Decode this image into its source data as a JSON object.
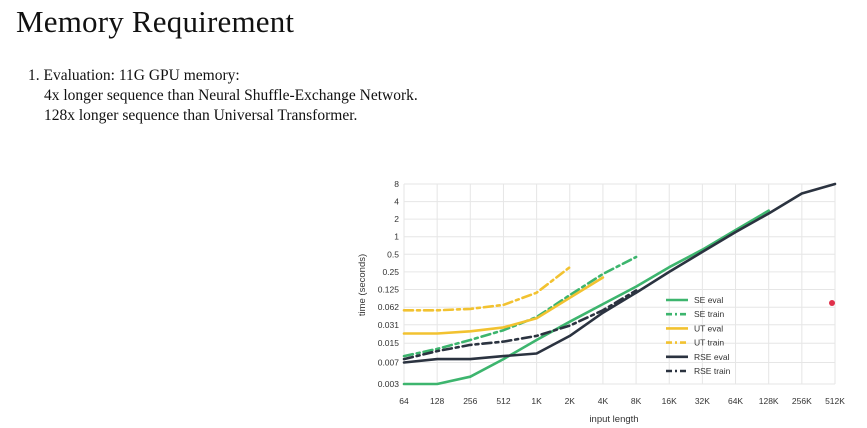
{
  "slide": {
    "title": "Memory Requirement",
    "bullets": [
      "1. Evaluation: 11G GPU memory:",
      "4x longer sequence than Neural Shuffle-Exchange Network.",
      "128x longer sequence than Universal Transformer."
    ]
  },
  "colors": {
    "green": "#3db56e",
    "yellow": "#f2c230",
    "dark": "#2b3340",
    "pointer": "#e0304a"
  },
  "chart_data": {
    "type": "line",
    "x": [
      "64",
      "128",
      "256",
      "512",
      "1K",
      "2K",
      "4K",
      "8K",
      "16K",
      "32K",
      "64K",
      "128K",
      "256K",
      "512K"
    ],
    "y_ticks": [
      0.003,
      0.007,
      0.015,
      0.031,
      0.062,
      0.125,
      0.25,
      0.5,
      1,
      2,
      4,
      8
    ],
    "y_tick_labels": [
      "0.003",
      "0.007",
      "0.015",
      "0.031",
      "0.062",
      "0.125",
      "0.25",
      "0.5",
      "1",
      "2",
      "4",
      "8"
    ],
    "xlabel": "input length",
    "ylabel": "time (seconds)",
    "yscale": "log2",
    "grid": true,
    "legend": "right",
    "series": [
      {
        "name": "SE eval",
        "color": "#3db56e",
        "dash": "solid",
        "values": [
          0.003,
          0.003,
          0.004,
          0.008,
          0.017,
          0.035,
          0.07,
          0.14,
          0.3,
          0.6,
          1.3,
          2.8,
          null,
          null
        ]
      },
      {
        "name": "SE train",
        "color": "#3db56e",
        "dash": "dashdot",
        "values": [
          0.009,
          0.012,
          0.017,
          0.025,
          0.042,
          0.1,
          0.23,
          0.45,
          null,
          null,
          null,
          null,
          null,
          null
        ]
      },
      {
        "name": "UT eval",
        "color": "#f2c230",
        "dash": "solid",
        "values": [
          0.022,
          0.022,
          0.024,
          0.028,
          0.04,
          0.09,
          0.2,
          null,
          null,
          null,
          null,
          null,
          null,
          null
        ]
      },
      {
        "name": "UT train",
        "color": "#f2c230",
        "dash": "dashdot",
        "values": [
          0.055,
          0.055,
          0.058,
          0.068,
          0.11,
          0.3,
          null,
          null,
          null,
          null,
          null,
          null,
          null,
          null
        ]
      },
      {
        "name": "RSE eval",
        "color": "#2b3340",
        "dash": "solid",
        "values": [
          0.007,
          0.008,
          0.008,
          0.009,
          0.01,
          0.02,
          0.05,
          0.11,
          0.25,
          0.55,
          1.2,
          2.5,
          5.5,
          8
        ]
      },
      {
        "name": "RSE train",
        "color": "#2b3340",
        "dash": "dashdot",
        "values": [
          0.008,
          0.011,
          0.014,
          0.016,
          0.02,
          0.03,
          0.055,
          0.12,
          null,
          null,
          null,
          null,
          null,
          null
        ]
      }
    ]
  }
}
